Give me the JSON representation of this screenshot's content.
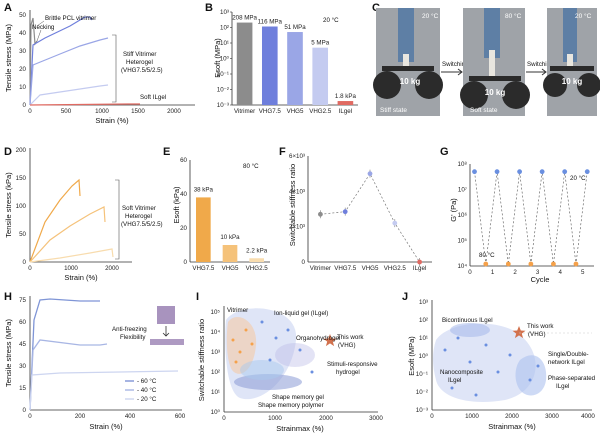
{
  "colors": {
    "vitrimer": "#8c8c8c",
    "vhg75": "#6f7fdc",
    "vhg5": "#9aa6e6",
    "vhg25": "#c4cbf0",
    "ilgel": "#e06a62",
    "orange1": "#f0a94a",
    "orange2": "#f5c27a",
    "orange3": "#f8dcae",
    "blue_pt": "#6a8fe0",
    "orange_pt": "#f5a14a",
    "star": "#d2714d"
  },
  "panelA": {
    "letter": "A",
    "ylabel": "Tensile stress (MPa)",
    "xlabel": "Strain (%)",
    "ann_brittle": "Brittle PCL vitrimer",
    "ann_necking": "Necking",
    "ann_stiff1": "Stiff Vitrimer",
    "ann_stiff2": "Heterogel",
    "ann_stiff3": "(VHG7.5/5/2.5)",
    "ann_soft": "Soft ILgel",
    "yticks": [
      "0",
      "10",
      "20",
      "30",
      "40",
      "50"
    ],
    "xticks": [
      "0",
      "500",
      "1000",
      "1500",
      "2000"
    ]
  },
  "panelB": {
    "letter": "B",
    "ylabel": "Esoft (MPa)",
    "temp": "20 °C",
    "yticks": [
      "10⁻³",
      "10⁻²",
      "10⁻¹",
      "10⁰",
      "10¹",
      "10²",
      "10³"
    ]
  },
  "panelC": {
    "letter": "C",
    "t1": "20 °C",
    "t2": "80 °C",
    "t3": "20 °C",
    "w1": "10 kg",
    "w2": "10 kg",
    "w3": "10 kg",
    "s1": "Stiff state",
    "s2": "Soft state",
    "sw1": "Switching",
    "sw2": "Switching"
  },
  "panelD": {
    "letter": "D",
    "ylabel": "Tensile stress (kPa)",
    "xlabel": "Strain (%)",
    "ann1": "Soft Vitrimer",
    "ann2": "Heterogel",
    "ann3": "(VHG7.5/5/2.5)",
    "yticks": [
      "0",
      "50",
      "100",
      "150",
      "200"
    ],
    "xticks": [
      "0",
      "1000",
      "2000"
    ]
  },
  "panelE": {
    "letter": "E",
    "ylabel": "Esoft (kPa)",
    "temp": "80 °C",
    "yticks": [
      "0",
      "20",
      "40",
      "60"
    ]
  },
  "panelF": {
    "letter": "F",
    "ylabel": "Switchable stiffness ratio",
    "yticks": [
      "0",
      "2×10³",
      "4×10³",
      "6×10³"
    ]
  },
  "panelG": {
    "letter": "G",
    "ylabel": "G' (Pa)",
    "xlabel": "Cycle",
    "t_hot": "80 °C",
    "t_cold": "20 °C",
    "yticks": [
      "10⁴",
      "10⁵",
      "10⁶",
      "10⁷",
      "10⁸"
    ],
    "xticks": [
      "0",
      "1",
      "2",
      "3",
      "4",
      "5"
    ]
  },
  "panelH": {
    "letter": "H",
    "ylabel": "Tensile stress (MPa)",
    "xlabel": "Strain (%)",
    "ann1": "Anti-freezing",
    "ann2": "Flexibility",
    "leg1": "- 60 °C",
    "leg2": "- 40 °C",
    "leg3": "- 20 °C",
    "yticks": [
      "0",
      "15",
      "30",
      "45",
      "60",
      "75"
    ],
    "xticks": [
      "0",
      "200",
      "400",
      "600"
    ]
  },
  "panelI": {
    "letter": "I",
    "ylabel": "Switchable stiffness ratio",
    "xlabel": "Strainmax (%)",
    "l_vitrimer": "Vitrimer",
    "l_ion": "Ion-liquid gel (ILgel)",
    "l_organo": "Organohydrogel",
    "l_smg": "Shape memory gel",
    "l_smp": "Shape memory polymer",
    "l_stimuli1": "Stimuli-responsive",
    "l_stimuli2": "hydrogel",
    "l_this1": "This work",
    "l_this2": "(VHG)",
    "yticks": [
      "10⁰",
      "10¹",
      "10²",
      "10³",
      "10⁴",
      "10⁵"
    ],
    "xticks": [
      "0",
      "1000",
      "2000",
      "3000"
    ]
  },
  "panelJ": {
    "letter": "J",
    "ylabel": "Esoft (MPa)",
    "xlabel": "Strainmax (%)",
    "l_bicont": "Bicontinuous ILgel",
    "l_this1": "This work",
    "l_this2": "(VHG)",
    "l_single1": "Single/Double-",
    "l_single2": "network ILgel",
    "l_nano1": "Nanocomposite",
    "l_nano2": "ILgel",
    "l_phase1": "Phase-separated",
    "l_phase2": "ILgel",
    "yticks": [
      "10⁻³",
      "10⁻²",
      "10⁻¹",
      "10⁰",
      "10¹",
      "10²",
      "10³"
    ],
    "xticks": [
      "0",
      "1000",
      "2000",
      "3000",
      "4000"
    ]
  },
  "chart_data": [
    {
      "panel": "B",
      "type": "bar",
      "categories": [
        "Vitrimer",
        "VHG7.5",
        "VHG5",
        "VHG2.5",
        "ILgel"
      ],
      "values": [
        208,
        116,
        51,
        5,
        0.0018
      ],
      "value_labels": [
        "208 MPa",
        "116 MPa",
        "51 MPa",
        "5 MPa",
        "1.8 kPa"
      ],
      "ylabel": "Esoft (MPa)",
      "yscale": "log",
      "ylim": [
        0.001,
        1000
      ]
    },
    {
      "panel": "E",
      "type": "bar",
      "categories": [
        "VHG7.5",
        "VHG5",
        "VHG2.5"
      ],
      "values": [
        38,
        10,
        2.2
      ],
      "value_labels": [
        "38 kPa",
        "10 kPa",
        "2.2 kPa"
      ],
      "ylabel": "Esoft (kPa)",
      "ylim": [
        0,
        60
      ]
    },
    {
      "panel": "F",
      "type": "scatter",
      "categories": [
        "Vitrimer",
        "VHG7.5",
        "VHG5",
        "VHG2.5",
        "ILgel"
      ],
      "values": [
        2700,
        2850,
        5000,
        2200,
        0
      ],
      "ylabel": "Switchable stiffness ratio",
      "ylim": [
        0,
        6000
      ]
    },
    {
      "panel": "G",
      "type": "line",
      "x": [
        0.2,
        0.7,
        1.2,
        1.7,
        2.2,
        2.7,
        3.2,
        3.7,
        4.2,
        4.7,
        5.2
      ],
      "series": [
        {
          "name": "20 °C",
          "values": [
            50000000,
            null,
            50000000,
            null,
            50000000,
            null,
            50000000,
            null,
            50000000,
            null,
            50000000
          ]
        },
        {
          "name": "80 °C",
          "values": [
            null,
            12000,
            null,
            12000,
            null,
            12000,
            null,
            12000,
            null,
            12000,
            null
          ]
        }
      ],
      "xlabel": "Cycle",
      "ylabel": "G' (Pa)",
      "yscale": "log",
      "ylim": [
        10000,
        100000000
      ],
      "xlim": [
        0,
        5.5
      ]
    }
  ]
}
